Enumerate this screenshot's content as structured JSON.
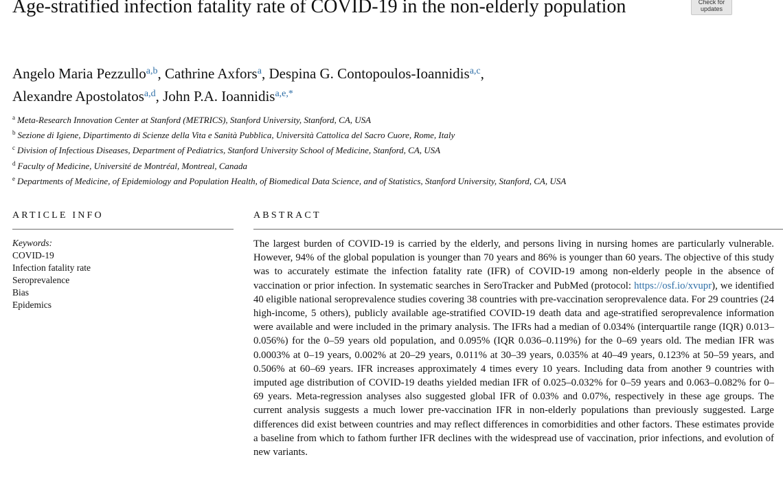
{
  "title": "Age-stratified infection fatality rate of COVID-19 in the non-elderly population",
  "check_badge": {
    "line1": "Check for",
    "line2": "updates"
  },
  "authors": [
    {
      "name": "Angelo Maria Pezzullo",
      "sup": "a,b",
      "sep": ", "
    },
    {
      "name": "Cathrine Axfors",
      "sup": "a",
      "sep": ", "
    },
    {
      "name": "Despina G. Contopoulos-Ioannidis",
      "sup": "a,c",
      "sep": ","
    },
    {
      "name": "Alexandre Apostolatos",
      "sup": "a,d",
      "sep": ", "
    },
    {
      "name": "John P.A. Ioannidis",
      "sup": "a,e,*",
      "sep": ""
    }
  ],
  "affiliations": [
    {
      "sup": "a",
      "text": "Meta-Research Innovation Center at Stanford (METRICS), Stanford University, Stanford, CA, USA"
    },
    {
      "sup": "b",
      "text": "Sezione di Igiene, Dipartimento di Scienze della Vita e Sanità Pubblica, Università Cattolica del Sacro Cuore, Rome, Italy"
    },
    {
      "sup": "c",
      "text": "Division of Infectious Diseases, Department of Pediatrics, Stanford University School of Medicine, Stanford, CA, USA"
    },
    {
      "sup": "d",
      "text": "Faculty of Medicine, Université de Montréal, Montreal, Canada"
    },
    {
      "sup": "e",
      "text": "Departments of Medicine, of Epidemiology and Population Health, of Biomedical Data Science, and of Statistics, Stanford University, Stanford, CA, USA"
    }
  ],
  "article_info": {
    "heading": "ARTICLE INFO",
    "keywords_label": "Keywords:",
    "keywords": [
      "COVID-19",
      "Infection fatality rate",
      "Seroprevalence",
      "Bias",
      "Epidemics"
    ]
  },
  "abstract": {
    "heading": "ABSTRACT",
    "text_before_link": "The largest burden of COVID-19 is carried by the elderly, and persons living in nursing homes are particularly vulnerable. However, 94% of the global population is younger than 70 years and 86% is younger than 60 years. The objective of this study was to accurately estimate the infection fatality rate (IFR) of COVID-19 among non-elderly people in the absence of vaccination or prior infection. In systematic searches in SeroTracker and PubMed (protocol: ",
    "link": "https://osf.io/xvupr",
    "text_after_link": "), we identified 40 eligible national seroprevalence studies covering 38 countries with pre-vaccination seroprevalence data. For 29 countries (24 high-income, 5 others), publicly available age-stratified COVID-19 death data and age-stratified seroprevalence information were available and were included in the primary analysis. The IFRs had a median of 0.034% (interquartile range (IQR) 0.013–0.056%) for the 0–59 years old population, and 0.095% (IQR 0.036–0.119%) for the 0–69 years old. The median IFR was 0.0003% at 0–19 years, 0.002% at 20–29 years, 0.011% at 30–39 years, 0.035% at 40–49 years, 0.123% at 50–59 years, and 0.506% at 60–69 years. IFR increases approximately 4 times every 10 years. Including data from another 9 countries with imputed age distribution of COVID-19 deaths yielded median IFR of 0.025–0.032% for 0–59 years and 0.063–0.082% for 0–69 years. Meta-regression analyses also suggested global IFR of 0.03% and 0.07%, respectively in these age groups. The current analysis suggests a much lower pre-vaccination IFR in non-elderly populations than previously suggested. Large differences did exist between countries and may reflect differences in comorbidities and other factors. These estimates provide a baseline from which to fathom further IFR declines with the widespread use of vaccination, prior infections, and evolution of new variants."
  },
  "colors": {
    "link": "#2f6fa7",
    "rule": "#6d6d6d",
    "badge_bg": "#e6e6e6"
  }
}
